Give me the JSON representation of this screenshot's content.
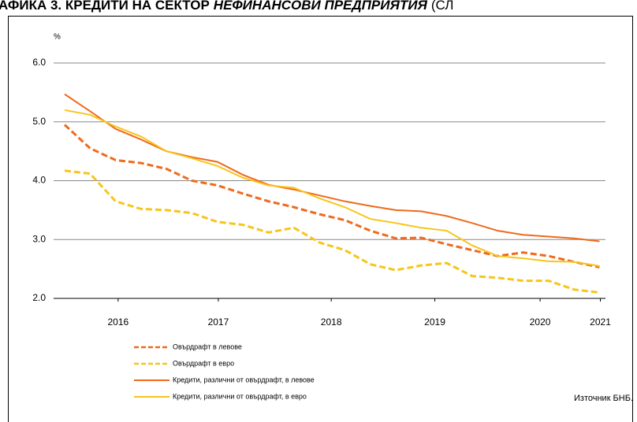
{
  "chart_data": {
    "type": "line",
    "title": "АФИКА 3. КРЕДИТИ НА СЕКТОР",
    "title_italic": "НЕФИНАНСОВИ ПРЕДПРИЯТИЯ",
    "title_end": "(СЛ",
    "y_label": "%",
    "source": "Източник БНБ.",
    "x": [
      0,
      3,
      6,
      9,
      12,
      15,
      18,
      21,
      24,
      27,
      30,
      33,
      36,
      39,
      42,
      45,
      48,
      51,
      54,
      57,
      60,
      63
    ],
    "xlim": [
      -1.3,
      63.7
    ],
    "xticks": [
      {
        "value": 6.3,
        "label": "2016"
      },
      {
        "value": 18.1,
        "label": "2017"
      },
      {
        "value": 31.4,
        "label": "2018"
      },
      {
        "value": 43.6,
        "label": "2019"
      },
      {
        "value": 56.0,
        "label": "2020"
      },
      {
        "value": 63.1,
        "label": "2021"
      }
    ],
    "ylim": [
      2.0,
      6.0
    ],
    "yticks": [
      {
        "value": 2.0,
        "label": "2.0"
      },
      {
        "value": 3.0,
        "label": "3.0"
      },
      {
        "value": 4.0,
        "label": "4.0"
      },
      {
        "value": 5.0,
        "label": "5.0"
      },
      {
        "value": 6.0,
        "label": "6.0"
      }
    ],
    "grid": true,
    "series": [
      {
        "name": "Овърдрафт в левове",
        "color": "#ee6a1c",
        "dashed": true,
        "values": [
          4.95,
          4.55,
          4.35,
          4.3,
          4.2,
          4.0,
          3.92,
          3.78,
          3.65,
          3.55,
          3.43,
          3.33,
          3.15,
          3.02,
          3.03,
          2.92,
          2.82,
          2.72,
          2.78,
          2.72,
          2.62,
          2.53
        ]
      },
      {
        "name": "Овърдрафт в евро",
        "color": "#f7c51b",
        "dashed": true,
        "values": [
          4.17,
          4.12,
          3.65,
          3.52,
          3.5,
          3.45,
          3.3,
          3.25,
          3.12,
          3.2,
          2.95,
          2.82,
          2.58,
          2.48,
          2.56,
          2.6,
          2.38,
          2.35,
          2.3,
          2.3,
          2.15,
          2.1
        ]
      },
      {
        "name": "Кредити, различни от овърдрафт, в левове",
        "color": "#ee6a1c",
        "dashed": false,
        "values": [
          5.47,
          5.18,
          4.88,
          4.7,
          4.5,
          4.4,
          4.32,
          4.1,
          3.93,
          3.85,
          3.75,
          3.65,
          3.57,
          3.5,
          3.48,
          3.4,
          3.28,
          3.15,
          3.08,
          3.05,
          3.02,
          2.97
        ]
      },
      {
        "name": "Кредити, различни от овърдрафт, в евро",
        "color": "#f7c51b",
        "dashed": false,
        "values": [
          5.2,
          5.12,
          4.92,
          4.75,
          4.5,
          4.38,
          4.25,
          4.05,
          3.92,
          3.88,
          3.7,
          3.55,
          3.35,
          3.28,
          3.2,
          3.15,
          2.9,
          2.72,
          2.68,
          2.63,
          2.62,
          2.55
        ]
      }
    ]
  }
}
